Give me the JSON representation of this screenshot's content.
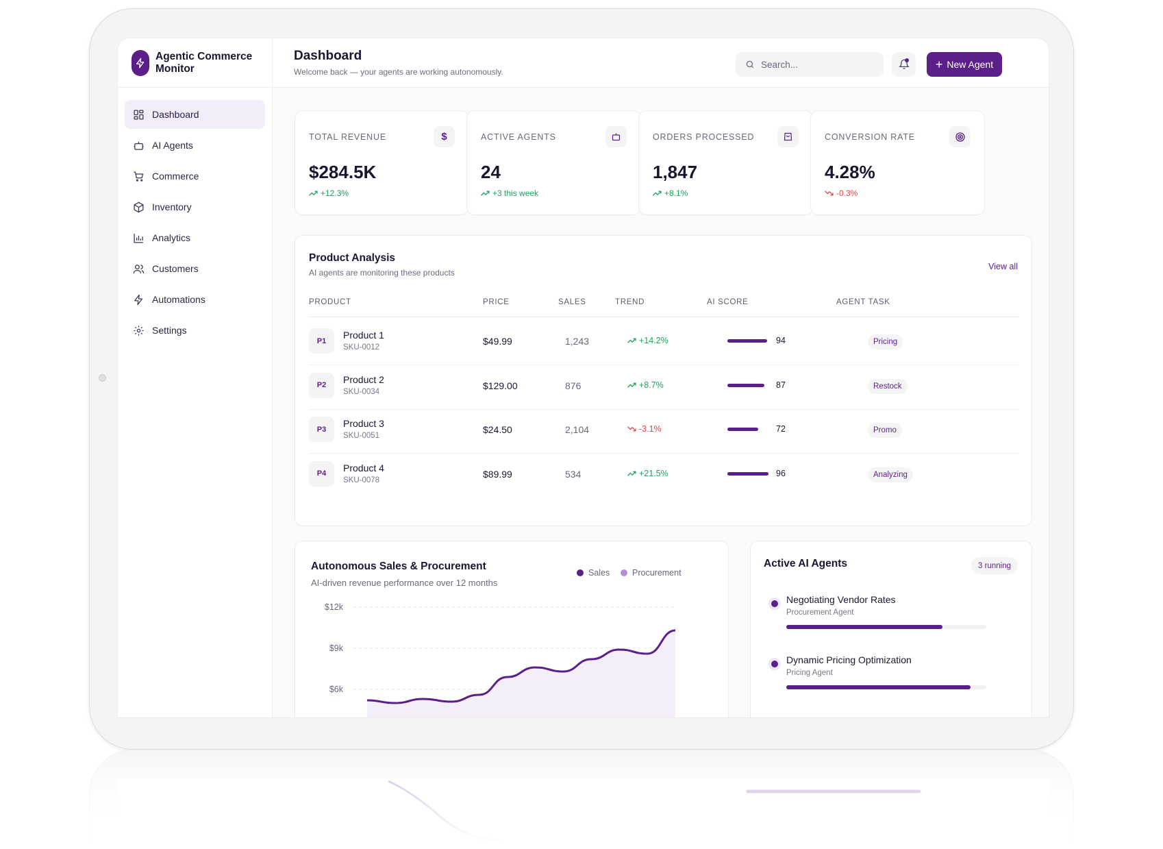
{
  "brand": {
    "name": "Agentic Commerce Monitor"
  },
  "sidebar": {
    "items": [
      {
        "label": "Dashboard",
        "icon": "grid-icon",
        "active": true
      },
      {
        "label": "AI Agents",
        "icon": "bot-icon"
      },
      {
        "label": "Commerce",
        "icon": "cart-icon"
      },
      {
        "label": "Inventory",
        "icon": "box-icon"
      },
      {
        "label": "Analytics",
        "icon": "bar-chart-icon"
      },
      {
        "label": "Customers",
        "icon": "users-icon"
      },
      {
        "label": "Automations",
        "icon": "zap-icon"
      },
      {
        "label": "Settings",
        "icon": "gear-icon"
      }
    ]
  },
  "header": {
    "title": "Dashboard",
    "subtitle": "Welcome back — your agents are working autonomously.",
    "search_placeholder": "Search...",
    "new_agent_label": "New Agent"
  },
  "kpis": [
    {
      "label": "TOTAL REVENUE",
      "value": "$284.5K",
      "delta": "+12.3%",
      "direction": "up",
      "icon": "dollar-icon"
    },
    {
      "label": "ACTIVE AGENTS",
      "value": "24",
      "delta": "+3 this week",
      "direction": "up",
      "icon": "bot-icon"
    },
    {
      "label": "ORDERS PROCESSED",
      "value": "1,847",
      "delta": "+8.1%",
      "direction": "up",
      "icon": "bag-icon"
    },
    {
      "label": "CONVERSION RATE",
      "value": "4.28%",
      "delta": "-0.3%",
      "direction": "down",
      "icon": "target-icon"
    }
  ],
  "product_analysis": {
    "title": "Product Analysis",
    "subtitle": "AI agents are monitoring these products",
    "view_all": "View all",
    "columns": [
      "PRODUCT",
      "PRICE",
      "SALES",
      "TREND",
      "AI SCORE",
      "AGENT TASK"
    ],
    "rows": [
      {
        "badge": "P1",
        "name": "Product 1",
        "sku": "SKU-0012",
        "price": "$49.99",
        "sales": "1,243",
        "trend": "+14.2%",
        "direction": "up",
        "score": 94,
        "score_label": "94",
        "task": "Pricing"
      },
      {
        "badge": "P2",
        "name": "Product 2",
        "sku": "SKU-0034",
        "price": "$129.00",
        "sales": "876",
        "trend": "+8.7%",
        "direction": "up",
        "score": 87,
        "score_label": "87",
        "task": "Restock"
      },
      {
        "badge": "P3",
        "name": "Product 3",
        "sku": "SKU-0051",
        "price": "$24.50",
        "sales": "2,104",
        "trend": "-3.1%",
        "direction": "down",
        "score": 72,
        "score_label": "72",
        "task": "Promo"
      },
      {
        "badge": "P4",
        "name": "Product 4",
        "sku": "SKU-0078",
        "price": "$89.99",
        "sales": "534",
        "trend": "+21.5%",
        "direction": "up",
        "score": 96,
        "score_label": "96",
        "task": "Analyzing"
      }
    ]
  },
  "sales_chart": {
    "title": "Autonomous Sales & Procurement",
    "subtitle": "AI-driven revenue performance over 12 months",
    "legend": [
      {
        "name": "Sales",
        "color": "#5b1f8a"
      },
      {
        "name": "Procurement",
        "color": "#b48ed6"
      }
    ]
  },
  "chart_data": {
    "type": "area",
    "title": "Autonomous Sales & Procurement",
    "y_ticks": [
      "$12k",
      "$9k",
      "$6k"
    ],
    "ylim": [
      0,
      12000
    ],
    "series": [
      {
        "name": "Sales",
        "values": [
          5200,
          5000,
          5300,
          5100,
          5600,
          6900,
          7600,
          7300,
          8200,
          8900,
          8600,
          10300
        ]
      }
    ],
    "grid": true
  },
  "active_agents": {
    "title": "Active AI Agents",
    "running_label": "3 running",
    "agents": [
      {
        "name": "Negotiating Vendor Rates",
        "role": "Procurement Agent",
        "progress": 0.78
      },
      {
        "name": "Dynamic Pricing Optimization",
        "role": "Pricing Agent",
        "progress": 0.92
      }
    ]
  },
  "colors": {
    "accent": "#5b1f8a",
    "positive": "#1aa35a",
    "negative": "#e0474c"
  }
}
